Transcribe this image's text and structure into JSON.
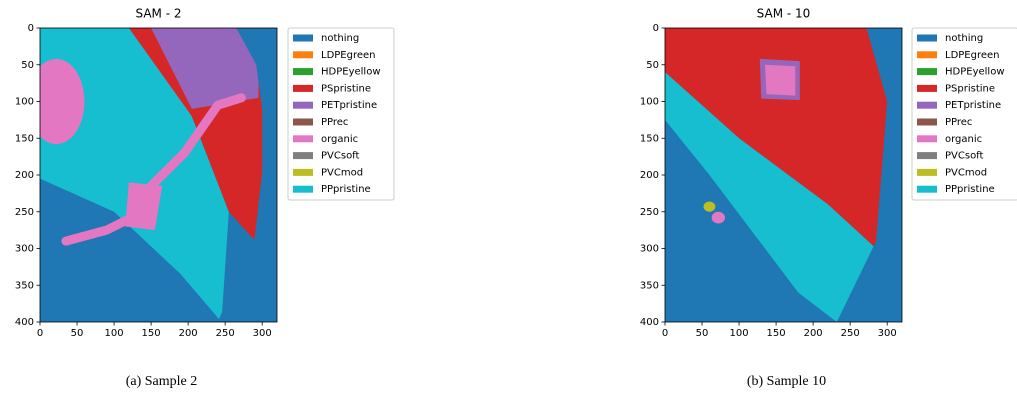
{
  "chart_data": [
    {
      "type": "image",
      "title": "SAM - 2",
      "caption": "(a) Sample 2",
      "xlim": [
        0,
        320
      ],
      "ylim": [
        400,
        0
      ],
      "xticks": [
        0,
        50,
        100,
        150,
        200,
        250,
        300
      ],
      "yticks": [
        0,
        50,
        100,
        150,
        200,
        250,
        300,
        350,
        400
      ],
      "series": [
        {
          "name": "nothing",
          "color": "#1f77b4"
        },
        {
          "name": "LDPEgreen",
          "color": "#ff7f0e"
        },
        {
          "name": "HDPEyellow",
          "color": "#2ca02c"
        },
        {
          "name": "PSpristine",
          "color": "#d62728"
        },
        {
          "name": "PETpristine",
          "color": "#9467bd"
        },
        {
          "name": "PPrec",
          "color": "#8c564b"
        },
        {
          "name": "organic",
          "color": "#e377c2"
        },
        {
          "name": "PVCsoft",
          "color": "#7f7f7f"
        },
        {
          "name": "PVCmod",
          "color": "#bcbd22"
        },
        {
          "name": "PPpristine",
          "color": "#17becf"
        }
      ],
      "legend": "outside right"
    },
    {
      "type": "image",
      "title": "SAM - 10",
      "caption": "(b) Sample 10",
      "xlim": [
        0,
        320
      ],
      "ylim": [
        400,
        0
      ],
      "xticks": [
        0,
        50,
        100,
        150,
        200,
        250,
        300
      ],
      "yticks": [
        0,
        50,
        100,
        150,
        200,
        250,
        300,
        350,
        400
      ],
      "series": [
        {
          "name": "nothing",
          "color": "#1f77b4"
        },
        {
          "name": "LDPEgreen",
          "color": "#ff7f0e"
        },
        {
          "name": "HDPEyellow",
          "color": "#2ca02c"
        },
        {
          "name": "PSpristine",
          "color": "#d62728"
        },
        {
          "name": "PETpristine",
          "color": "#9467bd"
        },
        {
          "name": "PPrec",
          "color": "#8c564b"
        },
        {
          "name": "organic",
          "color": "#e377c2"
        },
        {
          "name": "PVCsoft",
          "color": "#7f7f7f"
        },
        {
          "name": "PVCmod",
          "color": "#bcbd22"
        },
        {
          "name": "PPpristine",
          "color": "#17becf"
        }
      ],
      "legend": "outside right"
    }
  ]
}
